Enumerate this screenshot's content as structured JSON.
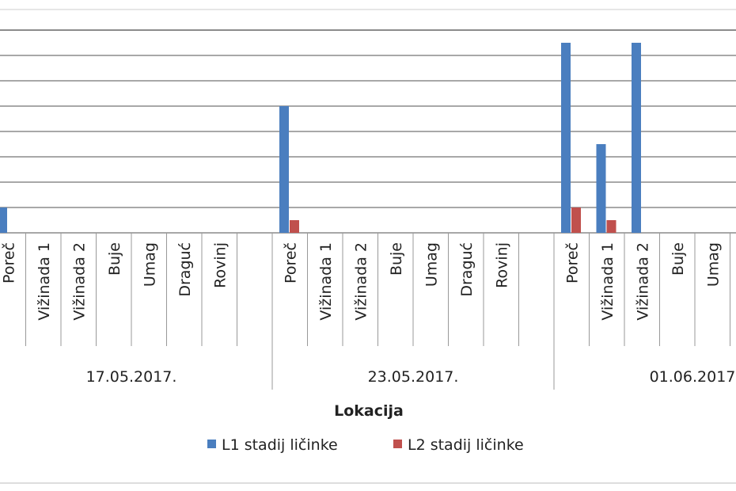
{
  "chart_data": {
    "type": "bar",
    "title": "",
    "xlabel": "Lokacija",
    "ylabel": "",
    "ylim": [
      0,
      8
    ],
    "grid": true,
    "legend_position": "bottom",
    "groups": [
      {
        "label": "17.05.2017.",
        "categories": [
          "Poreč",
          "Vižinada 1",
          "Vižinada 2",
          "Buje",
          "Umag",
          "Draguć",
          "Rovinj"
        ]
      },
      {
        "label": "23.05.2017.",
        "categories": [
          "Poreč",
          "Vižinada 1",
          "Vižinada 2",
          "Buje",
          "Umag",
          "Draguć",
          "Rovinj"
        ]
      },
      {
        "label": "01.06.2017.",
        "categories": [
          "Poreč",
          "Vižinada 1",
          "Vižinada 2",
          "Buje",
          "Umag"
        ]
      }
    ],
    "series": [
      {
        "name": "L1 stadij ličinke",
        "color": "#4a7ebf",
        "values": [
          [
            1,
            0,
            0,
            0,
            0,
            0,
            0
          ],
          [
            5,
            0,
            0,
            0,
            0,
            0,
            0
          ],
          [
            7.5,
            3.5,
            7.5,
            0,
            0
          ]
        ]
      },
      {
        "name": "L2 stadij ličinke",
        "color": "#c0504d",
        "values": [
          [
            0,
            0,
            0,
            0,
            0,
            0,
            0
          ],
          [
            0.5,
            0,
            0,
            0,
            0,
            0,
            0
          ],
          [
            1,
            0.5,
            0,
            0,
            0
          ]
        ]
      }
    ]
  }
}
